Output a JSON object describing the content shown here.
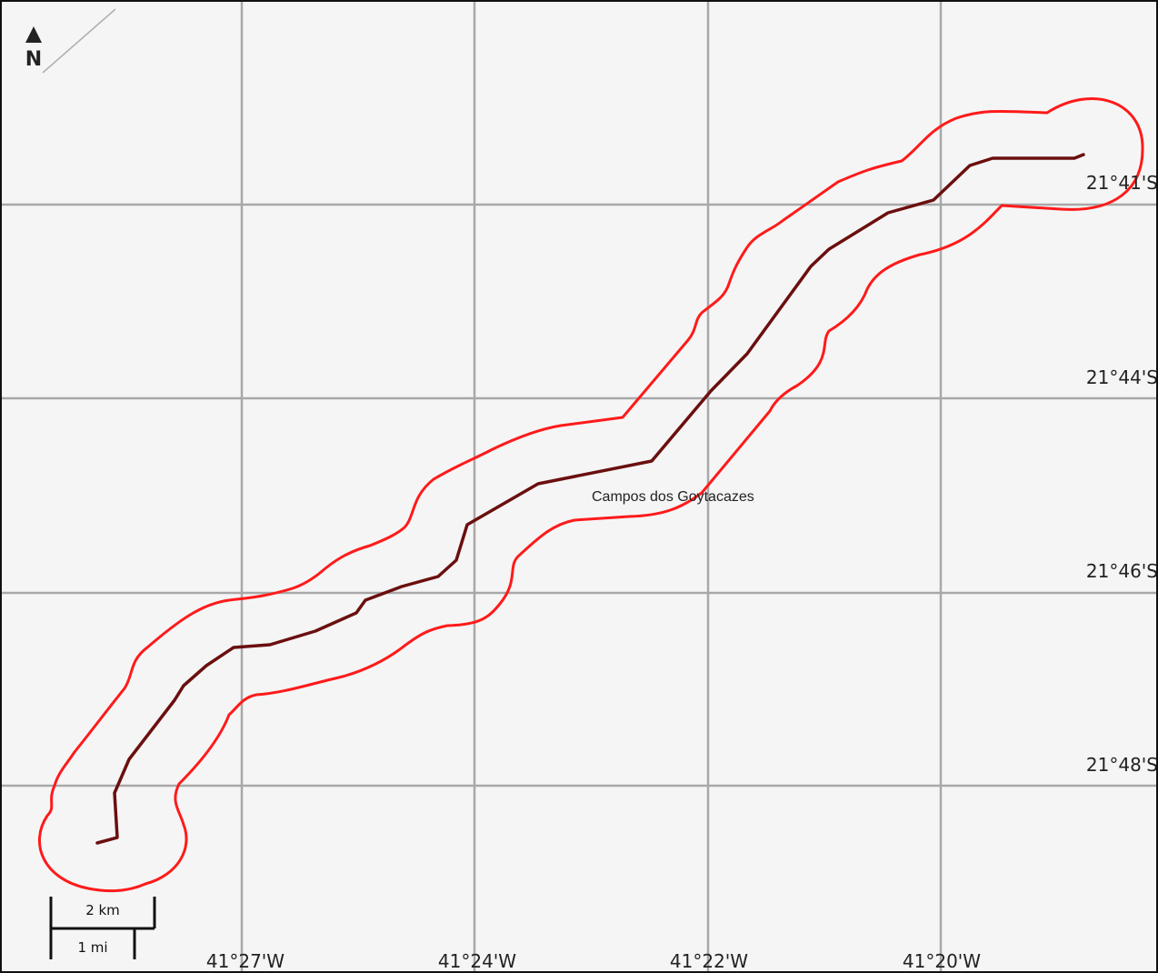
{
  "map": {
    "place_label": "Campos dos Goytacazes",
    "north_label": "N",
    "longitude_labels": [
      "41°27'W",
      "41°24'W",
      "41°22'W",
      "41°20'W"
    ],
    "latitude_labels": [
      "21°41'S",
      "21°44'S",
      "21°46'S",
      "21°48'S"
    ],
    "scale_bar": {
      "km_label": "2 km",
      "mi_label": "1 mi"
    },
    "colors": {
      "route_line": "#6b0f0f",
      "buffer_outline": "#ff1a1a",
      "grid": "#a8a8a8",
      "background": "#f5f5f5"
    }
  }
}
